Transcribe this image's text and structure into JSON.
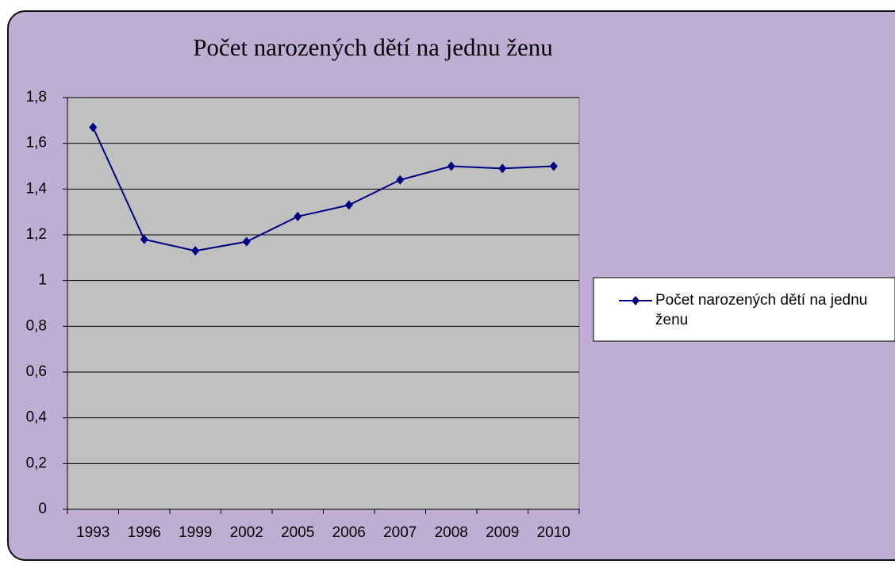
{
  "chart_data": {
    "type": "line",
    "title": "Počet narozených dětí na jednu ženu",
    "categories": [
      "1993",
      "1996",
      "1999",
      "2002",
      "2005",
      "2006",
      "2007",
      "2008",
      "2009",
      "2010"
    ],
    "series": [
      {
        "name": "Počet narozených dětí na jednu ženu",
        "color": "#000080",
        "values": [
          1.67,
          1.18,
          1.13,
          1.17,
          1.28,
          1.33,
          1.44,
          1.5,
          1.49,
          1.5
        ]
      }
    ],
    "ylim": [
      0,
      1.8
    ],
    "yticks": [
      0,
      {
        "value": 0.2,
        "label": "0,2"
      },
      {
        "value": 0.4,
        "label": "0,4"
      },
      {
        "value": 0.6,
        "label": "0,6"
      },
      {
        "value": 0.8,
        "label": "0,8"
      },
      1,
      {
        "value": 1.2,
        "label": "1,2"
      },
      {
        "value": 1.4,
        "label": "1,4"
      },
      {
        "value": 1.6,
        "label": "1,6"
      },
      {
        "value": 1.8,
        "label": "1,8"
      }
    ],
    "grid": true,
    "legend": "right"
  }
}
